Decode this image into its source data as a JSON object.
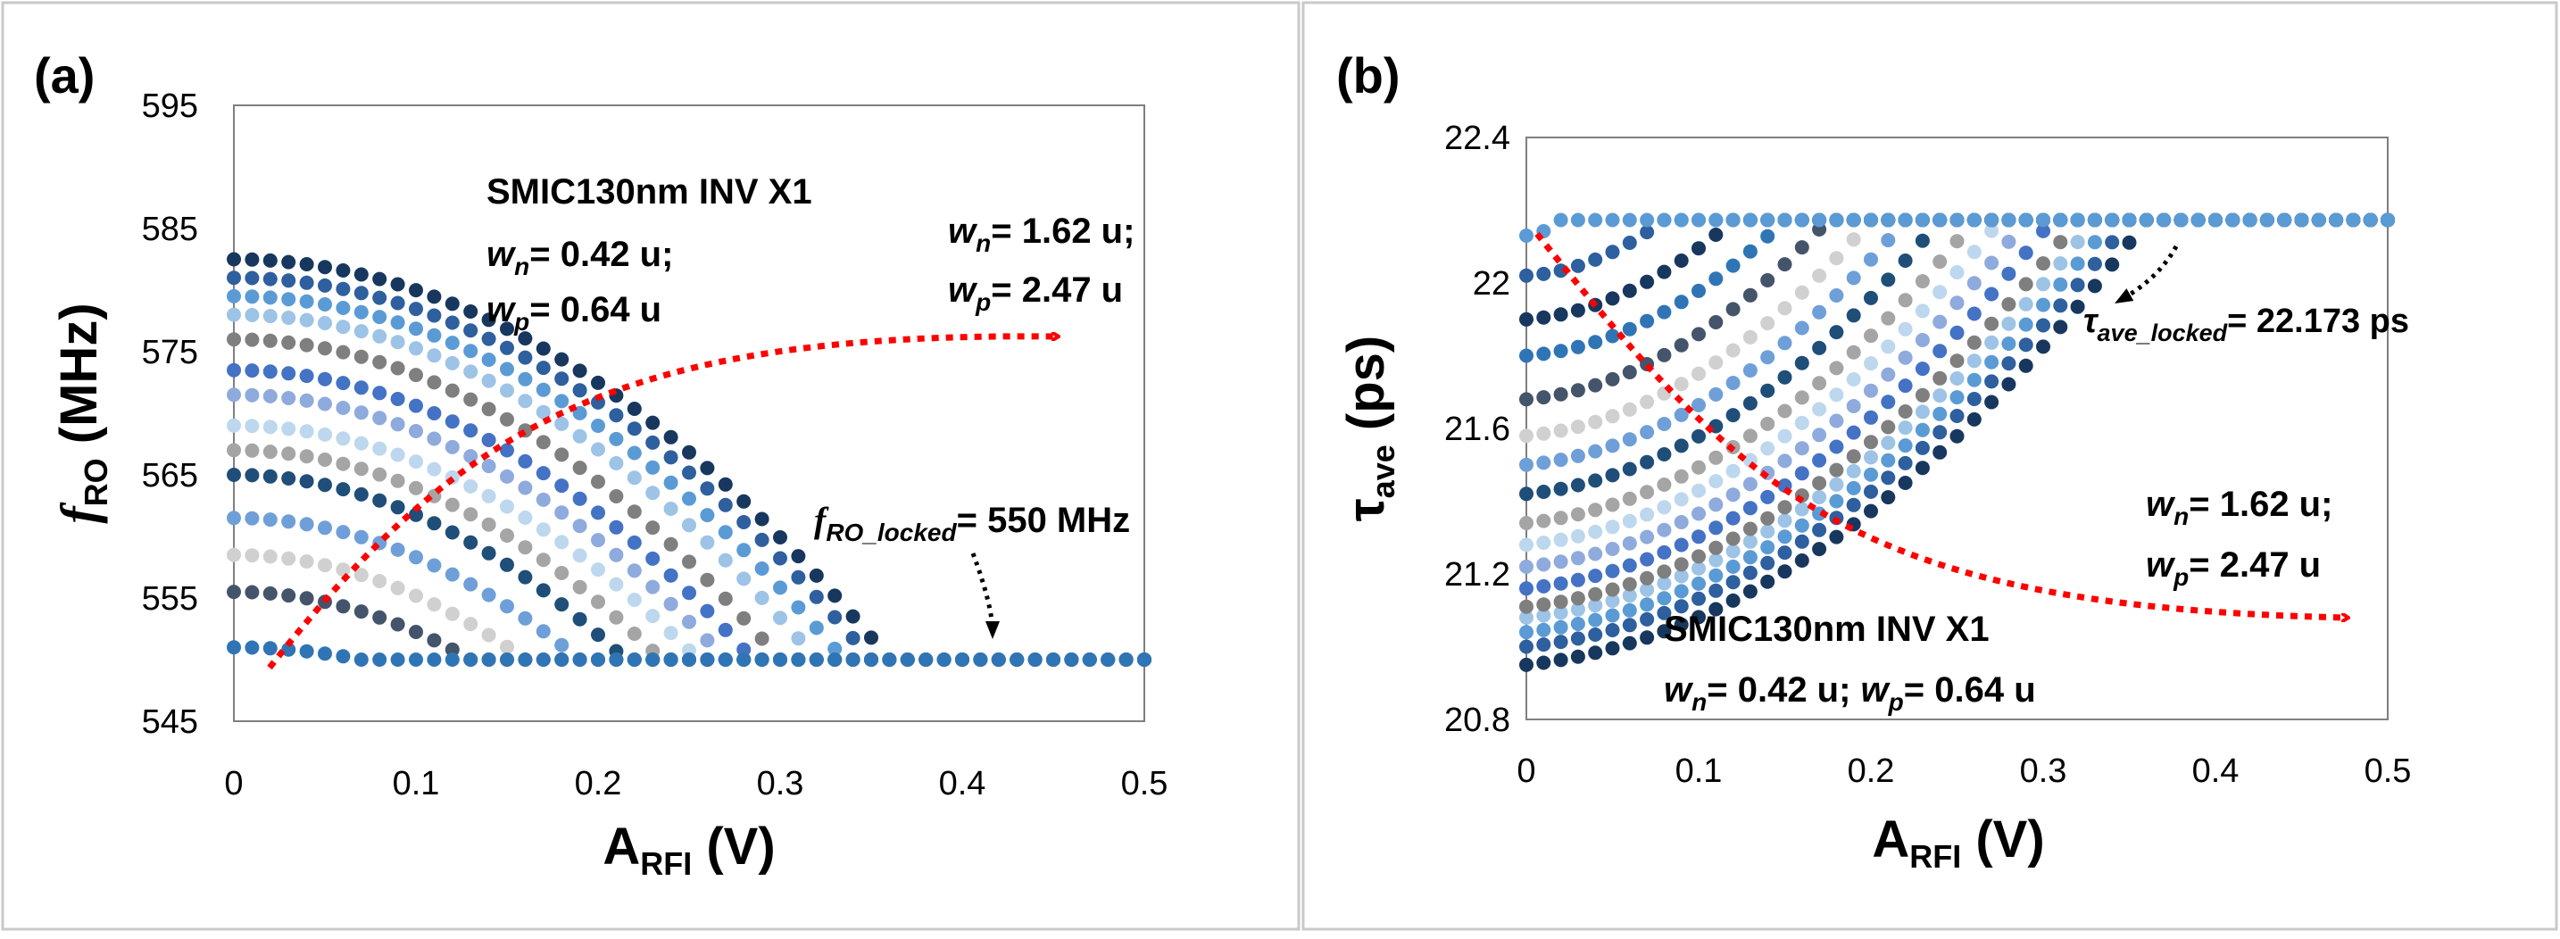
{
  "colors": {
    "frame": "#c9c9c9",
    "marker_palette": [
      "#17375e",
      "#2e5f9e",
      "#5b9bd5",
      "#9dc3e6",
      "#7f7f7f",
      "#4472c4",
      "#8faadc",
      "#bdd7ee",
      "#a5a5a5",
      "#1f4e79",
      "#6f9fd8",
      "#d0d0d0",
      "#44546a",
      "#2f75b5"
    ],
    "arrow": "#ff0000"
  },
  "chart_data": [
    {
      "id": "a",
      "type": "scatter",
      "panel_label": "(a)",
      "xlim": [
        0,
        0.5
      ],
      "ylim": [
        545,
        595
      ],
      "xticks": [
        0,
        0.1,
        0.2,
        0.3,
        0.4,
        0.5
      ],
      "yticks": [
        545,
        555,
        565,
        575,
        585,
        595
      ],
      "xtick_labels": [
        "0",
        "0.1",
        "0.2",
        "0.3",
        "0.4",
        "0.5"
      ],
      "ytick_labels": [
        "545",
        "555",
        "565",
        "575",
        "585",
        "595"
      ],
      "xlabel_main": "A",
      "xlabel_sub": "RFI",
      "xlabel_unit": " (V)",
      "ylabel_main": "f",
      "ylabel_sub": "RO",
      "ylabel_unit": " (MHz)",
      "locked_value": 550,
      "series_start": [
        582.5,
        581,
        579.5,
        578,
        576,
        573.5,
        571.5,
        569,
        567,
        565,
        561.5,
        558.5,
        555.5,
        551
      ],
      "series_lock_x": [
        0.36,
        0.35,
        0.335,
        0.32,
        0.3,
        0.285,
        0.27,
        0.255,
        0.235,
        0.215,
        0.19,
        0.16,
        0.13,
        0.07
      ],
      "step": 0.01,
      "annotations": {
        "device_title": "SMIC130nm INV X1",
        "small_wn_main": "w",
        "small_wn_sub": "n",
        "small_wn_val": "= 0.42 u;",
        "small_wp_main": "w",
        "small_wp_sub": "p",
        "small_wp_val": "= 0.64 u",
        "large_wn_main": "w",
        "large_wn_sub": "n",
        "large_wn_val": "= 1.62 u;",
        "large_wp_main": "w",
        "large_wp_sub": "p",
        "large_wp_val": "= 2.47 u",
        "locked_main": "f",
        "locked_sub": "RO_locked",
        "locked_val": "= 550 MHz"
      }
    },
    {
      "id": "b",
      "type": "scatter",
      "panel_label": "(b)",
      "xlim": [
        0,
        0.5
      ],
      "ylim": [
        20.8,
        22.4
      ],
      "xticks": [
        0,
        0.1,
        0.2,
        0.3,
        0.4,
        0.5
      ],
      "yticks": [
        20.8,
        21.2,
        21.6,
        22,
        22.4
      ],
      "xtick_labels": [
        "0",
        "0.1",
        "0.2",
        "0.3",
        "0.4",
        "0.5"
      ],
      "ytick_labels": [
        "20.8",
        "21.2",
        "21.6",
        "22",
        "22.4"
      ],
      "xlabel_main": "A",
      "xlabel_sub": "RFI",
      "xlabel_unit": " (V)",
      "ylabel_main": "τ",
      "ylabel_sub": "ave",
      "ylabel_unit": " (ps)",
      "locked_value": 22.173,
      "series_start": [
        20.95,
        21.0,
        21.04,
        21.08,
        21.11,
        21.16,
        21.22,
        21.28,
        21.34,
        21.42,
        21.5,
        21.58,
        21.68,
        21.8,
        21.9,
        22.02,
        22.13
      ],
      "series_lock_x": [
        0.36,
        0.35,
        0.34,
        0.33,
        0.32,
        0.305,
        0.29,
        0.275,
        0.26,
        0.24,
        0.22,
        0.2,
        0.175,
        0.15,
        0.12,
        0.08,
        0.02
      ],
      "step": 0.01,
      "annotations": {
        "device_title": "SMIC130nm INV X1",
        "small_wn_main": "w",
        "small_wn_sub": "n",
        "small_wn_val": "= 0.42 u; ",
        "small_wp_main": "w",
        "small_wp_sub": "p",
        "small_wp_val": "= 0.64 u",
        "large_wn_main": "w",
        "large_wn_sub": "n",
        "large_wn_val": "= 1.62 u;",
        "large_wp_main": "w",
        "large_wp_sub": "p",
        "large_wp_val": "= 2.47 u",
        "locked_main": "τ",
        "locked_sub": "ave_locked",
        "locked_val": "= 22.173 ps"
      }
    }
  ]
}
